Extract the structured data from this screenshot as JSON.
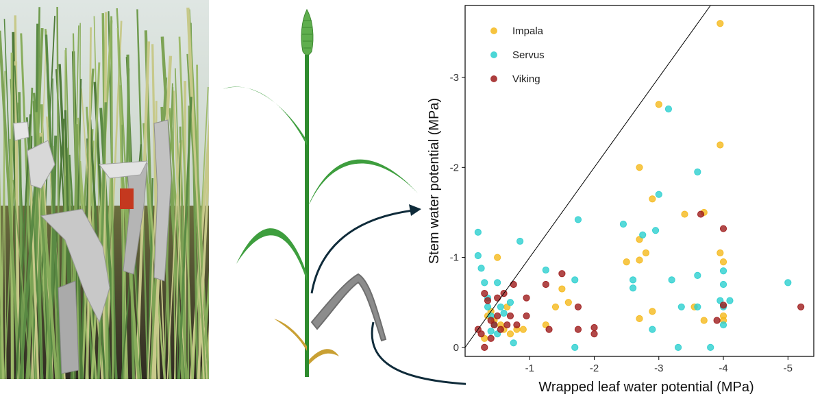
{
  "figure": {
    "photo_caption": "Wheat plots with foil-wrapped leaves",
    "plant_caption": "Wheat plant with wrapped leaf"
  },
  "colors": {
    "impala": "#F5B91C",
    "servus": "#2CCFCF",
    "viking": "#9E1B1B",
    "axis": "#000000",
    "arrow": "#0F2B3A",
    "stem": "#2E8B2E",
    "leaf": "#3E9E3E",
    "wrap": "#8C8C8C",
    "dry": "#C9A033"
  },
  "chart_data": {
    "type": "scatter",
    "title": "",
    "xlabel": "Wrapped leaf water potential (MPa)",
    "ylabel": "Stem water potential (MPa)",
    "xlim": [
      0,
      -5.4
    ],
    "ylim": [
      0.1,
      -3.8
    ],
    "xticks": [
      -1,
      -2,
      -3,
      -4,
      -5
    ],
    "xtick_labels": [
      "-1",
      "-2",
      "-3",
      "-4",
      "-5"
    ],
    "yticks": [
      0,
      -1,
      -2,
      -3
    ],
    "ytick_labels": [
      "0",
      "-1",
      "-2",
      "-3"
    ],
    "reference_line": "1:1",
    "legend_position": "top-left",
    "series": [
      {
        "name": "Impala",
        "color": "#F5B91C",
        "points": [
          [
            -0.5,
            -1.0
          ],
          [
            -0.4,
            -0.4
          ],
          [
            -0.45,
            -0.3
          ],
          [
            -0.55,
            -0.25
          ],
          [
            -0.6,
            -0.2
          ],
          [
            -0.7,
            -0.15
          ],
          [
            -0.65,
            -0.45
          ],
          [
            -0.35,
            -0.35
          ],
          [
            -0.3,
            -0.1
          ],
          [
            -0.9,
            -0.2
          ],
          [
            -1.25,
            -0.25
          ],
          [
            -1.4,
            -0.45
          ],
          [
            -1.5,
            -0.65
          ],
          [
            -1.6,
            -0.5
          ],
          [
            -0.8,
            -0.2
          ],
          [
            -2.5,
            -0.95
          ],
          [
            -2.7,
            -1.2
          ],
          [
            -2.7,
            -0.97
          ],
          [
            -2.8,
            -1.05
          ],
          [
            -2.7,
            -2.0
          ],
          [
            -3.0,
            -2.7
          ],
          [
            -2.9,
            -1.65
          ],
          [
            -3.4,
            -1.48
          ],
          [
            -3.7,
            -1.5
          ],
          [
            -3.95,
            -1.05
          ],
          [
            -4.0,
            -0.95
          ],
          [
            -3.55,
            -0.45
          ],
          [
            -3.7,
            -0.3
          ],
          [
            -4.0,
            -0.35
          ],
          [
            -4.0,
            -0.3
          ],
          [
            -3.95,
            -2.25
          ],
          [
            -3.95,
            -3.6
          ],
          [
            -2.7,
            -0.32
          ],
          [
            -2.9,
            -0.4
          ]
        ]
      },
      {
        "name": "Servus",
        "color": "#2CCFCF",
        "points": [
          [
            -0.2,
            -1.28
          ],
          [
            -0.2,
            -1.02
          ],
          [
            -0.25,
            -0.88
          ],
          [
            -0.3,
            -0.72
          ],
          [
            -0.35,
            -0.55
          ],
          [
            -0.35,
            -0.45
          ],
          [
            -0.4,
            -0.35
          ],
          [
            -0.45,
            -0.25
          ],
          [
            -0.5,
            -0.15
          ],
          [
            -0.55,
            -0.45
          ],
          [
            -0.6,
            -0.38
          ],
          [
            -0.7,
            -0.5
          ],
          [
            -0.75,
            -0.05
          ],
          [
            -0.5,
            -0.72
          ],
          [
            -0.4,
            -0.18
          ],
          [
            -0.85,
            -1.18
          ],
          [
            -1.25,
            -0.86
          ],
          [
            -1.7,
            -0.75
          ],
          [
            -1.75,
            -1.42
          ],
          [
            -1.7,
            0.0
          ],
          [
            -2.45,
            -1.37
          ],
          [
            -2.6,
            -0.75
          ],
          [
            -2.6,
            -0.66
          ],
          [
            -2.75,
            -1.25
          ],
          [
            -2.95,
            -1.3
          ],
          [
            -3.0,
            -1.7
          ],
          [
            -3.15,
            -2.65
          ],
          [
            -3.2,
            -0.75
          ],
          [
            -2.9,
            -0.2
          ],
          [
            -3.3,
            0.0
          ],
          [
            -3.35,
            -0.45
          ],
          [
            -3.6,
            -1.95
          ],
          [
            -3.6,
            -0.8
          ],
          [
            -3.6,
            -0.45
          ],
          [
            -3.8,
            0.0
          ],
          [
            -3.95,
            -0.52
          ],
          [
            -4.0,
            -0.85
          ],
          [
            -4.0,
            -0.7
          ],
          [
            -4.0,
            -0.45
          ],
          [
            -4.0,
            -0.25
          ],
          [
            -4.1,
            -0.52
          ],
          [
            -5.0,
            -0.72
          ]
        ]
      },
      {
        "name": "Viking",
        "color": "#9E1B1B",
        "points": [
          [
            -0.2,
            -0.2
          ],
          [
            -0.25,
            -0.15
          ],
          [
            -0.3,
            -0.0
          ],
          [
            -0.3,
            -0.6
          ],
          [
            -0.35,
            -0.52
          ],
          [
            -0.4,
            -0.3
          ],
          [
            -0.4,
            -0.1
          ],
          [
            -0.45,
            -0.25
          ],
          [
            -0.5,
            -0.55
          ],
          [
            -0.5,
            -0.35
          ],
          [
            -0.55,
            -0.2
          ],
          [
            -0.6,
            -0.6
          ],
          [
            -0.65,
            -0.25
          ],
          [
            -0.7,
            -0.35
          ],
          [
            -0.75,
            -0.7
          ],
          [
            -0.8,
            -0.25
          ],
          [
            -0.95,
            -0.55
          ],
          [
            -0.95,
            -0.35
          ],
          [
            -1.25,
            -0.7
          ],
          [
            -1.3,
            -0.2
          ],
          [
            -1.5,
            -0.82
          ],
          [
            -1.75,
            -0.45
          ],
          [
            -1.75,
            -0.2
          ],
          [
            -2.0,
            -0.22
          ],
          [
            -2.0,
            -0.15
          ],
          [
            -3.65,
            -1.48
          ],
          [
            -3.9,
            -0.3
          ],
          [
            -4.0,
            -1.32
          ],
          [
            -4.0,
            -0.47
          ],
          [
            -5.2,
            -0.45
          ]
        ]
      }
    ]
  }
}
